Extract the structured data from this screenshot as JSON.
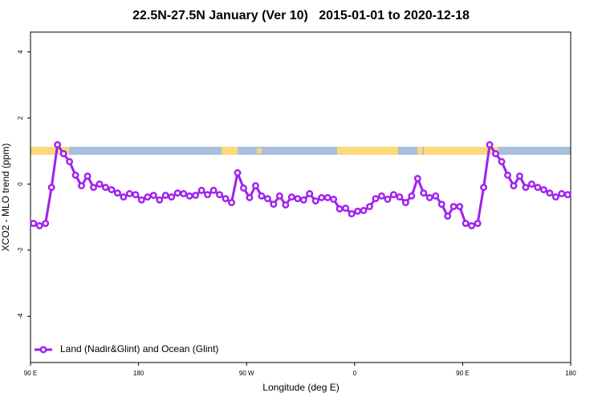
{
  "chart_data": {
    "type": "line",
    "title": "22.5N-27.5N January (Ver 10)   2015-01-01 to 2020-12-18",
    "xlabel": "Longitude (deg E)",
    "ylabel": "XCO2 - MLO trend (ppm)",
    "xlim": [
      90,
      540
    ],
    "ylim": [
      -5.4,
      4.6
    ],
    "xticks": [
      {
        "value": 90,
        "label": "90 E"
      },
      180,
      {
        "value": 270,
        "label": "90 W"
      },
      {
        "value": 360,
        "label": "0"
      },
      {
        "value": 450,
        "label": "90 E"
      },
      {
        "value": 540,
        "label": "180"
      }
    ],
    "yticks": [
      -4,
      -2,
      0,
      2,
      4
    ],
    "legend": "bottom-left",
    "x": [
      92.5,
      97.5,
      102.5,
      107.5,
      112.5,
      117.5,
      122.5,
      127.5,
      132.5,
      137.5,
      142.5,
      147.5,
      152.5,
      157.5,
      162.5,
      167.5,
      172.5,
      177.5,
      182.5,
      187.5,
      192.5,
      197.5,
      202.5,
      207.5,
      212.5,
      217.5,
      222.5,
      227.5,
      232.5,
      237.5,
      242.5,
      247.5,
      252.5,
      257.5,
      262.5,
      267.5,
      272.5,
      277.5,
      282.5,
      287.5,
      292.5,
      297.5,
      302.5,
      307.5,
      312.5,
      317.5,
      322.5,
      327.5,
      332.5,
      337.5,
      342.5,
      347.5,
      352.5,
      357.5,
      362.5,
      367.5,
      372.5,
      377.5,
      382.5,
      387.5,
      392.5,
      397.5,
      402.5,
      407.5,
      412.5,
      417.5,
      422.5,
      427.5,
      432.5,
      437.5,
      442.5,
      447.5,
      452.5,
      457.5,
      462.5,
      467.5,
      472.5,
      477.5,
      482.5,
      487.5,
      492.5,
      497.5,
      502.5,
      507.5,
      512.5,
      517.5,
      522.5,
      527.5,
      532.5,
      537.5
    ],
    "series": [
      {
        "name": "Land (Nadir&Glint) and Ocean (Glint)",
        "color": "#a020f0",
        "values": [
          -1.19,
          -1.26,
          -1.19,
          -0.1,
          1.19,
          0.92,
          0.68,
          0.27,
          -0.05,
          0.24,
          -0.1,
          0,
          -0.1,
          -0.17,
          -0.27,
          -0.39,
          -0.29,
          -0.32,
          -0.48,
          -0.39,
          -0.34,
          -0.48,
          -0.34,
          -0.39,
          -0.27,
          -0.29,
          -0.36,
          -0.34,
          -0.19,
          -0.32,
          -0.19,
          -0.32,
          -0.44,
          -0.56,
          0.34,
          -0.12,
          -0.41,
          -0.05,
          -0.36,
          -0.44,
          -0.61,
          -0.36,
          -0.63,
          -0.39,
          -0.44,
          -0.48,
          -0.29,
          -0.51,
          -0.41,
          -0.41,
          -0.46,
          -0.75,
          -0.73,
          -0.9,
          -0.82,
          -0.8,
          -0.68,
          -0.44,
          -0.36,
          -0.46,
          -0.32,
          -0.39,
          -0.56,
          -0.36,
          0.17,
          -0.27,
          -0.41,
          -0.36,
          -0.61,
          -0.97,
          -0.68,
          -0.68,
          -1.19,
          -1.26,
          -1.19,
          -0.1,
          1.19,
          0.92,
          0.68,
          0.27,
          -0.05,
          0.24,
          -0.1,
          0,
          -0.1,
          -0.17,
          -0.27,
          -0.39,
          -0.29,
          -0.32
        ]
      }
    ]
  }
}
